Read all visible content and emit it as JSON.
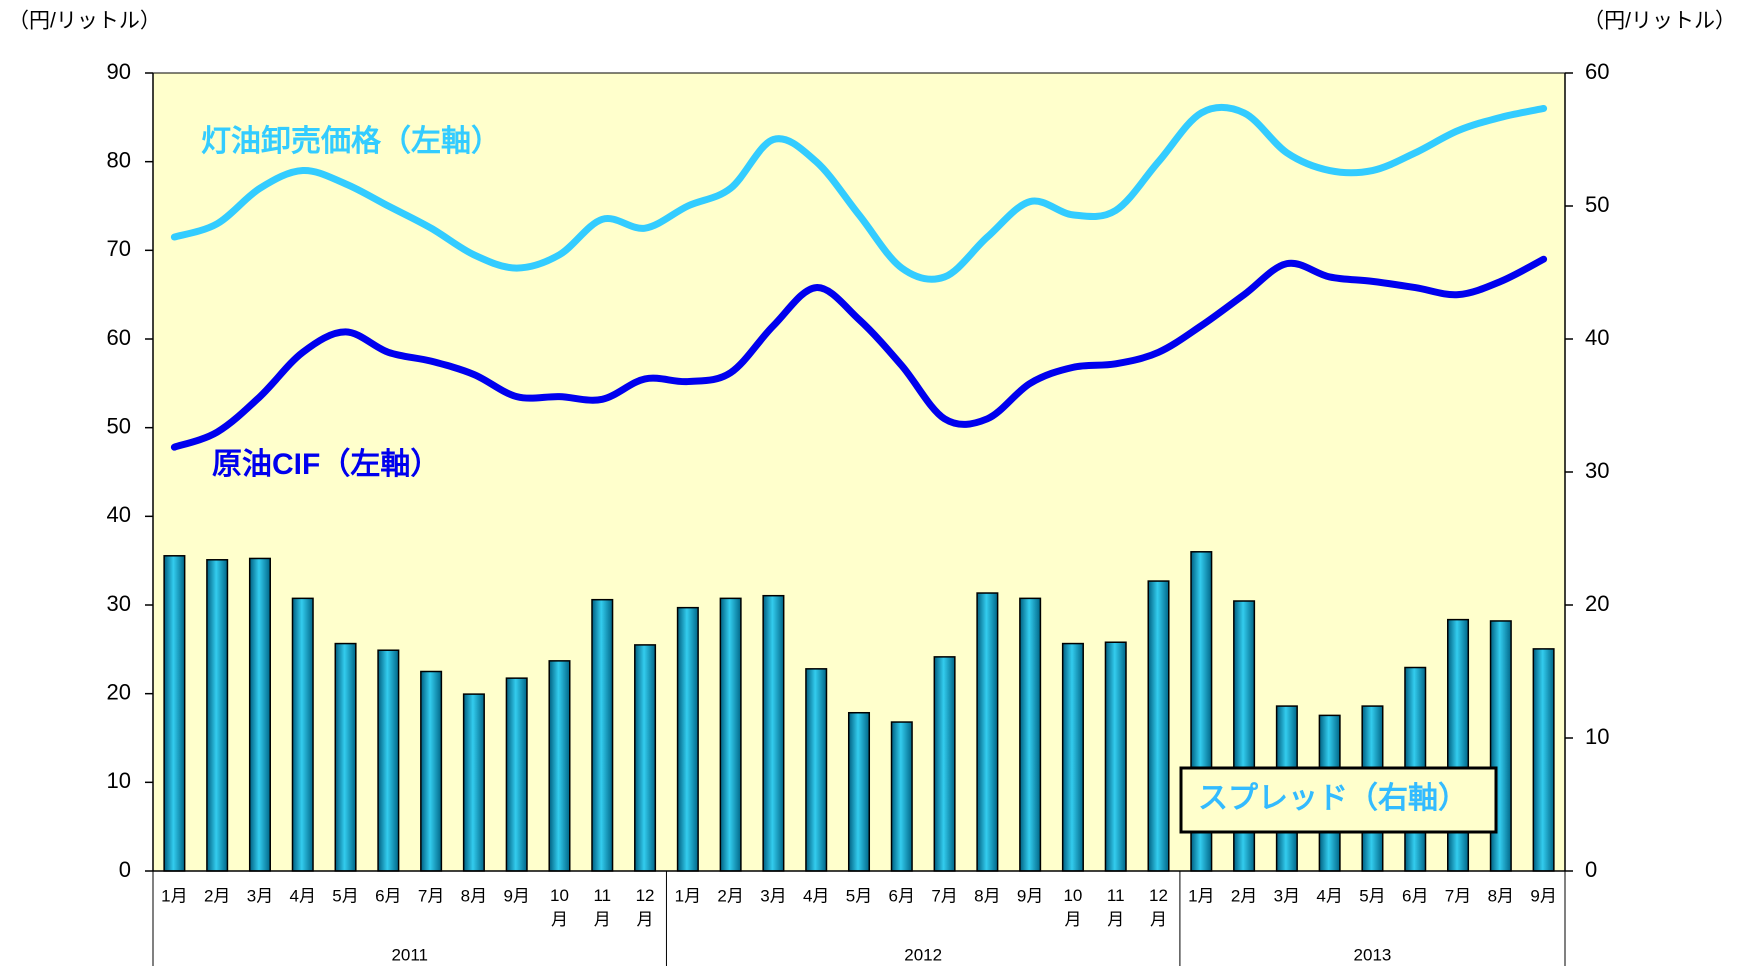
{
  "chart_data": {
    "type": "combo",
    "y_label": "（円/リットル）",
    "y2_label": "（円/リットル）",
    "categories": [
      "1月",
      "2月",
      "3月",
      "4月",
      "5月",
      "6月",
      "7月",
      "8月",
      "9月",
      "10月",
      "11月",
      "12月",
      "1月",
      "2月",
      "3月",
      "4月",
      "5月",
      "6月",
      "7月",
      "8月",
      "9月",
      "10月",
      "11月",
      "12月",
      "1月",
      "2月",
      "3月",
      "4月",
      "5月",
      "6月",
      "7月",
      "8月",
      "9月"
    ],
    "category_groups": [
      {
        "label": "2011",
        "span": 12
      },
      {
        "label": "2012",
        "span": 12
      },
      {
        "label": "2013",
        "span": 9
      }
    ],
    "ylim": [
      0,
      90
    ],
    "yticks": [
      0,
      10,
      20,
      30,
      40,
      50,
      60,
      70,
      80,
      90
    ],
    "y2lim": [
      0,
      60
    ],
    "y2ticks": [
      0,
      10,
      20,
      30,
      40,
      50,
      60
    ],
    "background": "#ffffcc",
    "series": [
      {
        "name": "スプレッド（右軸）",
        "type": "bar",
        "axis": "y2",
        "color": "#0099cc",
        "values": [
          23.7,
          23.4,
          23.5,
          20.5,
          17.1,
          16.6,
          15.0,
          13.3,
          14.5,
          15.8,
          20.4,
          17.0,
          19.8,
          20.5,
          20.7,
          15.2,
          11.9,
          11.2,
          16.1,
          20.9,
          20.5,
          17.1,
          17.2,
          21.8,
          24.0,
          20.3,
          12.4,
          11.7,
          12.4,
          15.3,
          18.9,
          18.8,
          16.7
        ]
      },
      {
        "name": "灯油卸売価格（左軸）",
        "type": "line",
        "axis": "y",
        "color": "#33ccff",
        "values": [
          71.5,
          73,
          77,
          79,
          77.5,
          75,
          72.5,
          69.5,
          68,
          69.5,
          73.5,
          72.5,
          75,
          77,
          82.5,
          80,
          74,
          68,
          67,
          71.5,
          75.5,
          74,
          74.5,
          80,
          85.5,
          85.5,
          81,
          79,
          79,
          81,
          83.5,
          85,
          86
        ]
      },
      {
        "name": "原油CIF（左軸）",
        "type": "line",
        "axis": "y",
        "color": "#0000ee",
        "values": [
          47.8,
          49.5,
          53.5,
          58.5,
          60.8,
          58.5,
          57.5,
          56,
          53.5,
          53.5,
          53.2,
          55.5,
          55.2,
          56.2,
          61.5,
          65.8,
          62.2,
          57,
          51,
          51,
          55,
          56.8,
          57.2,
          58.5,
          61.5,
          65,
          68.5,
          67,
          66.5,
          65.8,
          65,
          66.5,
          69
        ]
      }
    ]
  }
}
